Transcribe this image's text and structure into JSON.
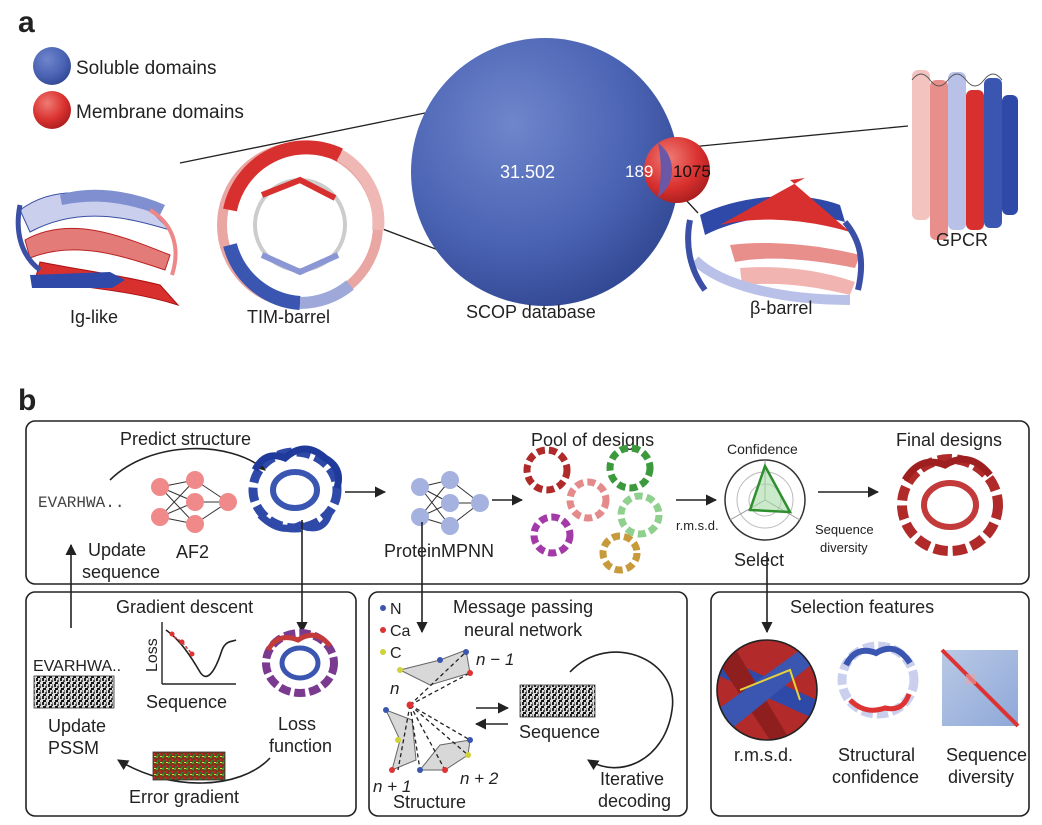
{
  "panel_a": {
    "letter": "a",
    "legend": {
      "soluble": "Soluble domains",
      "membrane": "Membrane domains"
    },
    "colors": {
      "soluble": "#4a63b3",
      "membrane": "#d9312f"
    },
    "counts": {
      "soluble": "31.502",
      "overlap": "189",
      "membrane": "1075"
    },
    "labels": {
      "ig_like": "Ig-like",
      "tim_barrel": "TIM-barrel",
      "scop": "SCOP database",
      "beta_barrel": "β-barrel",
      "gpcr": "GPCR"
    }
  },
  "panel_b": {
    "letter": "b",
    "top": {
      "predict_structure": "Predict structure",
      "sequence_text": "EVARHWA..",
      "af2": "AF2",
      "update_sequence_1": "Update",
      "update_sequence_2": "sequence",
      "proteinmpnn": "ProteinMPNN",
      "pool_of_designs": "Pool of designs",
      "confidence": "Confidence",
      "rmsd": "r.m.s.d.",
      "select": "Select",
      "sequence_diversity_1": "Sequence",
      "sequence_diversity_2": "diversity",
      "final_designs": "Final designs"
    },
    "gradient": {
      "title": "Gradient descent",
      "seq_text": "EVARHWA..",
      "loss_axis": "Loss",
      "sequence_axis": "Sequence",
      "update_pssm_1": "Update",
      "update_pssm_2": "PSSM",
      "loss_function_1": "Loss",
      "loss_function_2": "function",
      "error_gradient": "Error gradient"
    },
    "message": {
      "title_1": "Message passing",
      "title_2": "neural network",
      "legend_n": "N",
      "legend_ca": "Ca",
      "legend_c": "C",
      "node_n": "n",
      "node_n_minus_1": "n − 1",
      "node_n_plus_1": "n + 1",
      "node_n_plus_2": "n + 2",
      "sequence": "Sequence",
      "structure": "Structure",
      "iterative_1": "Iterative",
      "iterative_2": "decoding"
    },
    "selection": {
      "title": "Selection features",
      "rmsd": "r.m.s.d.",
      "structural_1": "Structural",
      "structural_2": "confidence",
      "diversity_1": "Sequence",
      "diversity_2": "diversity"
    }
  }
}
